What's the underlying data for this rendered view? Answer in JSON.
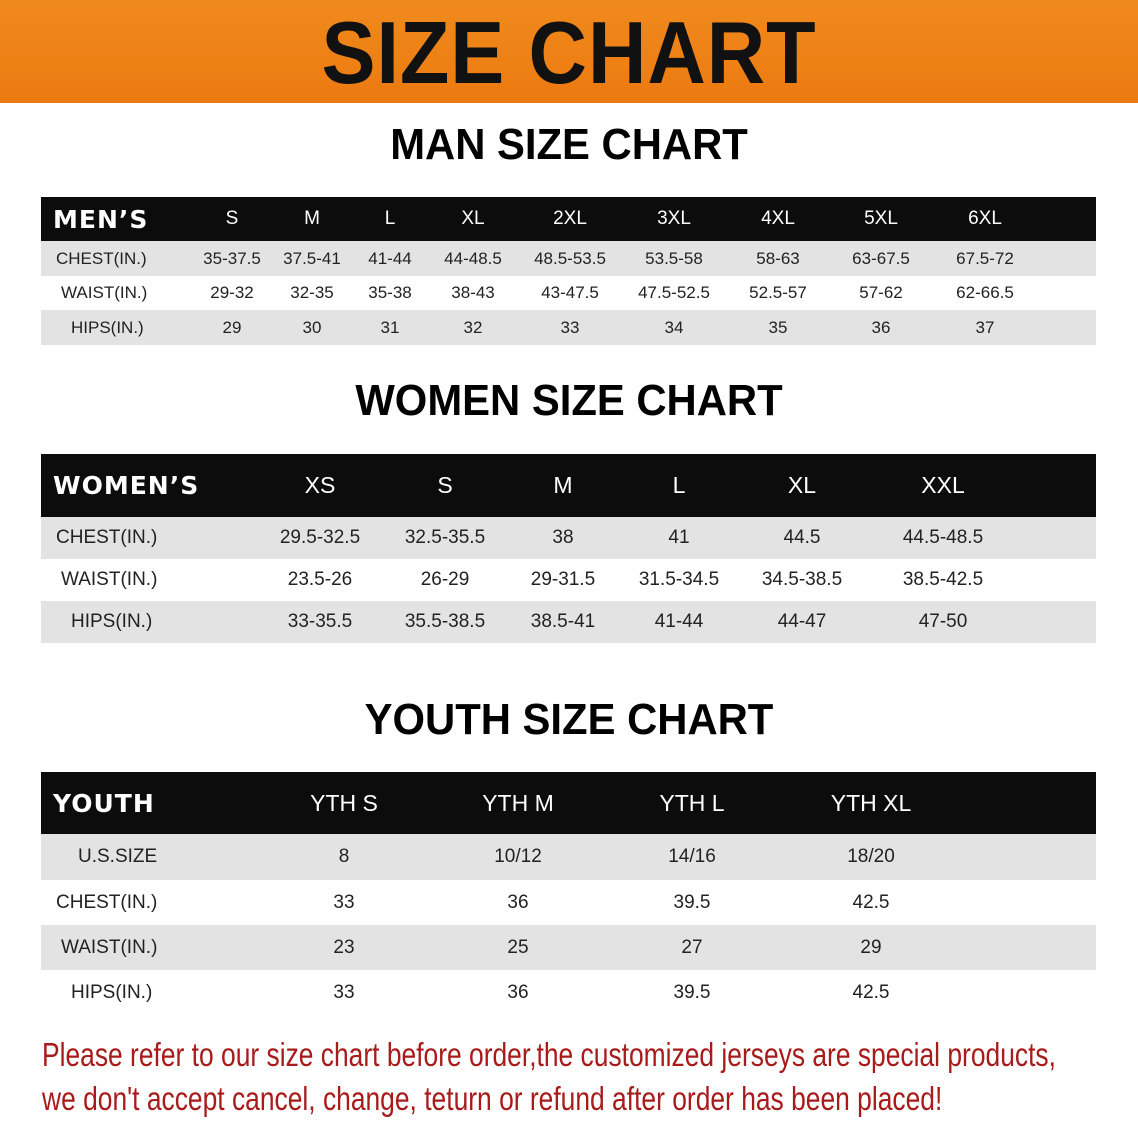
{
  "banner": {
    "title": "SIZE CHART",
    "color": "#ee8016"
  },
  "men": {
    "title": "MAN SIZE CHART",
    "header_label": "MEN’S",
    "sizes": [
      "S",
      "M",
      "L",
      "XL",
      "2XL",
      "3XL",
      "4XL",
      "5XL",
      "6XL"
    ],
    "rows": [
      {
        "label": "CHEST(IN.)",
        "values": [
          "35-37.5",
          "37.5-41",
          "41-44",
          "44-48.5",
          "48.5-53.5",
          "53.5-58",
          "58-63",
          "63-67.5",
          "67.5-72"
        ]
      },
      {
        "label": "WAIST(IN.)",
        "values": [
          "29-32",
          "32-35",
          "35-38",
          "38-43",
          "43-47.5",
          "47.5-52.5",
          "52.5-57",
          "57-62",
          "62-66.5"
        ]
      },
      {
        "label": "HIPS(IN.)",
        "values": [
          "29",
          "30",
          "31",
          "32",
          "33",
          "34",
          "35",
          "36",
          "37"
        ]
      }
    ]
  },
  "women": {
    "title": "WOMEN SIZE CHART",
    "header_label": "WOMEN’S",
    "sizes": [
      "XS",
      "S",
      "M",
      "L",
      "XL",
      "XXL"
    ],
    "rows": [
      {
        "label": "CHEST(IN.)",
        "values": [
          "29.5-32.5",
          "32.5-35.5",
          "38",
          "41",
          "44.5",
          "44.5-48.5"
        ]
      },
      {
        "label": "WAIST(IN.)",
        "values": [
          "23.5-26",
          "26-29",
          "29-31.5",
          "31.5-34.5",
          "34.5-38.5",
          "38.5-42.5"
        ]
      },
      {
        "label": "HIPS(IN.)",
        "values": [
          "33-35.5",
          "35.5-38.5",
          "38.5-41",
          "41-44",
          "44-47",
          "47-50"
        ]
      }
    ]
  },
  "youth": {
    "title": "YOUTH SIZE CHART",
    "header_label": "YOUTH",
    "sizes": [
      "YTH S",
      "YTH M",
      "YTH L",
      "YTH XL"
    ],
    "rows": [
      {
        "label": "U.S.SIZE",
        "values": [
          "8",
          "10/12",
          "14/16",
          "18/20"
        ]
      },
      {
        "label": "CHEST(IN.)",
        "values": [
          "33",
          "36",
          "39.5",
          "42.5"
        ]
      },
      {
        "label": "WAIST(IN.)",
        "values": [
          "23",
          "25",
          "27",
          "29"
        ]
      },
      {
        "label": "HIPS(IN.)",
        "values": [
          "33",
          "36",
          "39.5",
          "42.5"
        ]
      }
    ]
  },
  "notice": {
    "line1": "Please refer to our size chart before order,the customized jerseys are special products,",
    "line2": "we don't accept cancel, change, teturn or refund after order has been placed!",
    "color": "#a81b1b"
  }
}
